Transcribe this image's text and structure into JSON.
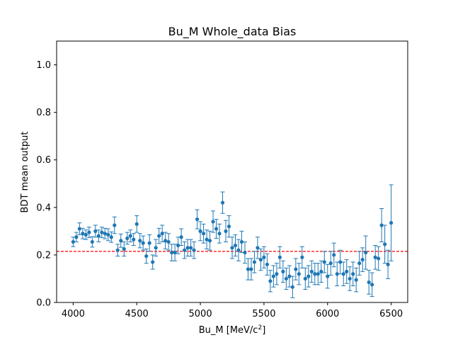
{
  "chart_data": {
    "type": "scatter",
    "title": "Bu_M Whole_data Bias",
    "xlabel_prefix": "Bu_M [MeV/c",
    "xlabel_sup": "2",
    "xlabel_suffix": "]",
    "ylabel": "BDT mean output",
    "xlim": [
      3870,
      6630
    ],
    "ylim": [
      0.0,
      1.1
    ],
    "xticks": [
      4000,
      4500,
      5000,
      5500,
      6000,
      6500
    ],
    "xtick_labels": [
      "4000",
      "4500",
      "5000",
      "5500",
      "6000",
      "6500"
    ],
    "yticks": [
      0.0,
      0.2,
      0.4,
      0.6,
      0.8,
      1.0
    ],
    "ytick_labels": [
      "0.0",
      "0.2",
      "0.4",
      "0.6",
      "0.8",
      "1.0"
    ],
    "grid": false,
    "marker_color": "#1f77b4",
    "reference_line": {
      "y": 0.215,
      "color": "#ff0000",
      "style": "dashed"
    },
    "series": [
      {
        "x": [
          4000,
          4025,
          4050,
          4075,
          4100,
          4125,
          4150,
          4175,
          4200,
          4225,
          4250,
          4275,
          4300,
          4325,
          4350,
          4375,
          4400,
          4425,
          4450,
          4475,
          4500,
          4525,
          4550,
          4575,
          4600,
          4625,
          4650,
          4675,
          4700,
          4725,
          4750,
          4775,
          4800,
          4825,
          4850,
          4875,
          4900,
          4925,
          4950,
          4975,
          5000,
          5025,
          5050,
          5075,
          5100,
          5125,
          5150,
          5175,
          5200,
          5225,
          5250,
          5275,
          5300,
          5325,
          5350,
          5375,
          5400,
          5425,
          5450,
          5475,
          5500,
          5525,
          5550,
          5575,
          5600,
          5625,
          5650,
          5675,
          5700,
          5725,
          5750,
          5775,
          5800,
          5825,
          5850,
          5875,
          5900,
          5925,
          5950,
          5975,
          6000,
          6025,
          6050,
          6075,
          6100,
          6125,
          6150,
          6175,
          6200,
          6225,
          6250,
          6275,
          6300,
          6325,
          6350,
          6375,
          6400,
          6425,
          6450,
          6475,
          6500
        ],
        "y": [
          0.255,
          0.275,
          0.31,
          0.29,
          0.285,
          0.295,
          0.255,
          0.3,
          0.28,
          0.295,
          0.29,
          0.285,
          0.275,
          0.325,
          0.22,
          0.26,
          0.225,
          0.27,
          0.28,
          0.265,
          0.33,
          0.26,
          0.25,
          0.195,
          0.25,
          0.17,
          0.23,
          0.28,
          0.29,
          0.26,
          0.255,
          0.21,
          0.21,
          0.24,
          0.275,
          0.22,
          0.23,
          0.23,
          0.22,
          0.35,
          0.3,
          0.29,
          0.265,
          0.26,
          0.34,
          0.31,
          0.29,
          0.42,
          0.3,
          0.32,
          0.23,
          0.24,
          0.22,
          0.255,
          0.21,
          0.14,
          0.14,
          0.17,
          0.23,
          0.18,
          0.19,
          0.16,
          0.09,
          0.11,
          0.12,
          0.19,
          0.13,
          0.1,
          0.11,
          0.065,
          0.14,
          0.12,
          0.19,
          0.1,
          0.11,
          0.13,
          0.12,
          0.12,
          0.13,
          0.17,
          0.11,
          0.165,
          0.2,
          0.12,
          0.17,
          0.12,
          0.13,
          0.1,
          0.12,
          0.095,
          0.165,
          0.18,
          0.21,
          0.085,
          0.075,
          0.19,
          0.185,
          0.325,
          0.245,
          0.16,
          0.335
        ],
        "err": [
          0.02,
          0.02,
          0.025,
          0.022,
          0.02,
          0.022,
          0.022,
          0.025,
          0.025,
          0.022,
          0.022,
          0.025,
          0.022,
          0.035,
          0.025,
          0.028,
          0.03,
          0.025,
          0.025,
          0.025,
          0.035,
          0.03,
          0.03,
          0.03,
          0.035,
          0.03,
          0.035,
          0.032,
          0.035,
          0.035,
          0.035,
          0.035,
          0.035,
          0.035,
          0.035,
          0.035,
          0.035,
          0.035,
          0.035,
          0.04,
          0.04,
          0.04,
          0.04,
          0.04,
          0.045,
          0.04,
          0.04,
          0.045,
          0.045,
          0.045,
          0.045,
          0.045,
          0.045,
          0.045,
          0.045,
          0.045,
          0.045,
          0.045,
          0.045,
          0.045,
          0.045,
          0.045,
          0.045,
          0.045,
          0.045,
          0.045,
          0.045,
          0.045,
          0.045,
          0.045,
          0.045,
          0.045,
          0.045,
          0.045,
          0.045,
          0.045,
          0.045,
          0.045,
          0.045,
          0.045,
          0.05,
          0.05,
          0.05,
          0.05,
          0.05,
          0.05,
          0.05,
          0.05,
          0.05,
          0.05,
          0.05,
          0.05,
          0.07,
          0.05,
          0.05,
          0.05,
          0.05,
          0.07,
          0.08,
          0.06,
          0.16
        ]
      }
    ]
  }
}
